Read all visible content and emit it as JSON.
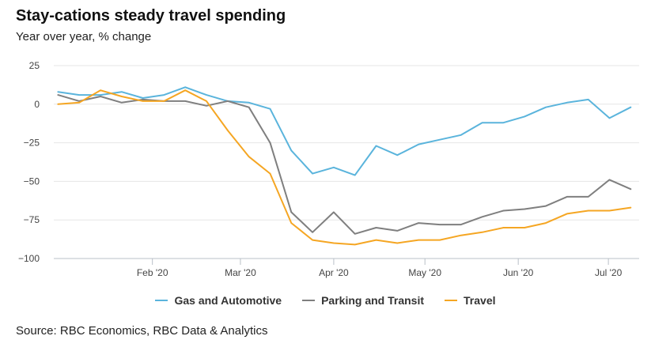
{
  "header": {
    "title": "Stay-cations steady travel spending",
    "subtitle": "Year over year, % change"
  },
  "footer": {
    "source": "Source: RBC Economics, RBC Data & Analytics"
  },
  "chart_data": {
    "type": "line",
    "title": "Stay-cations steady travel spending",
    "subtitle": "Year over year, % change",
    "xlabel": "",
    "ylabel": "",
    "ylim": [
      -100,
      25
    ],
    "y_ticks": [
      25,
      0,
      -25,
      -50,
      -75,
      -100
    ],
    "y_tick_labels": [
      "25",
      "0",
      "−25",
      "−50",
      "−75",
      "−100"
    ],
    "x_ticks": [
      {
        "label": "Feb '20",
        "week": 4.45
      },
      {
        "label": "Mar '20",
        "week": 8.6
      },
      {
        "label": "Apr '20",
        "week": 13.0
      },
      {
        "label": "May '20",
        "week": 17.3
      },
      {
        "label": "Jun '20",
        "week": 21.7
      },
      {
        "label": "Jul '20",
        "week": 25.95
      }
    ],
    "x_range": [
      -0.2,
      27.4
    ],
    "grid": true,
    "legend_position": "bottom",
    "series": [
      {
        "name": "Gas and Automotive",
        "color": "#5ab4dc",
        "values": [
          8,
          6,
          6,
          8,
          4,
          6,
          11,
          6,
          2,
          1,
          -3,
          -30,
          -45,
          -41,
          -46,
          -27,
          -33,
          -26,
          -23,
          -20,
          -12,
          -12,
          -8,
          -2,
          1,
          3,
          -9,
          -2
        ]
      },
      {
        "name": "Parking and Transit",
        "color": "#7f7f7f",
        "values": [
          6,
          2,
          5,
          1,
          3,
          2,
          2,
          -1,
          2,
          -2,
          -25,
          -70,
          -83,
          -70,
          -84,
          -80,
          -82,
          -77,
          -78,
          -78,
          -73,
          -69,
          -68,
          -66,
          -60,
          -60,
          -49,
          -55
        ]
      },
      {
        "name": "Travel",
        "color": "#f5a623",
        "values": [
          0,
          1,
          9,
          5,
          2,
          2,
          9,
          2,
          -17,
          -34,
          -45,
          -77,
          -88,
          -90,
          -91,
          -88,
          -90,
          -88,
          -88,
          -85,
          -83,
          -80,
          -80,
          -77,
          -71,
          -69,
          -69,
          -67
        ]
      }
    ]
  }
}
